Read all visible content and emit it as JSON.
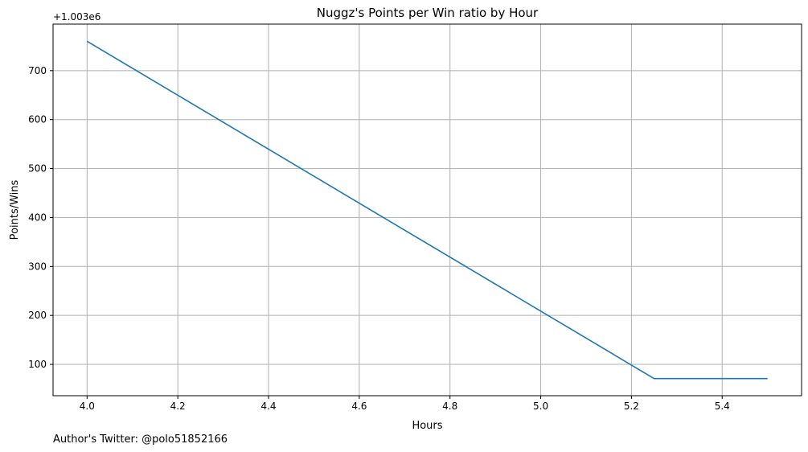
{
  "chart_data": {
    "type": "line",
    "title": "Nuggz's Points per Win ratio by Hour",
    "xlabel": "Hours",
    "ylabel": "Points/Wins",
    "offset_label": "+1.003e6",
    "footer": "Author's Twitter: @polo51852166",
    "x": [
      4.0,
      5.25,
      5.5
    ],
    "series": [
      {
        "values": [
          760,
          71,
          71
        ],
        "color": "#1f77b4"
      }
    ],
    "xlim": [
      3.925,
      5.575
    ],
    "ylim": [
      36,
      795
    ],
    "xticks": [
      4.0,
      4.2,
      4.4,
      4.6,
      4.8,
      5.0,
      5.2,
      5.4
    ],
    "xtick_labels": [
      "4.0",
      "4.2",
      "4.4",
      "4.6",
      "4.8",
      "5.0",
      "5.2",
      "5.4"
    ],
    "yticks": [
      100,
      200,
      300,
      400,
      500,
      600,
      700
    ],
    "ytick_labels": [
      "100",
      "200",
      "300",
      "400",
      "500",
      "600",
      "700"
    ],
    "grid": true
  }
}
